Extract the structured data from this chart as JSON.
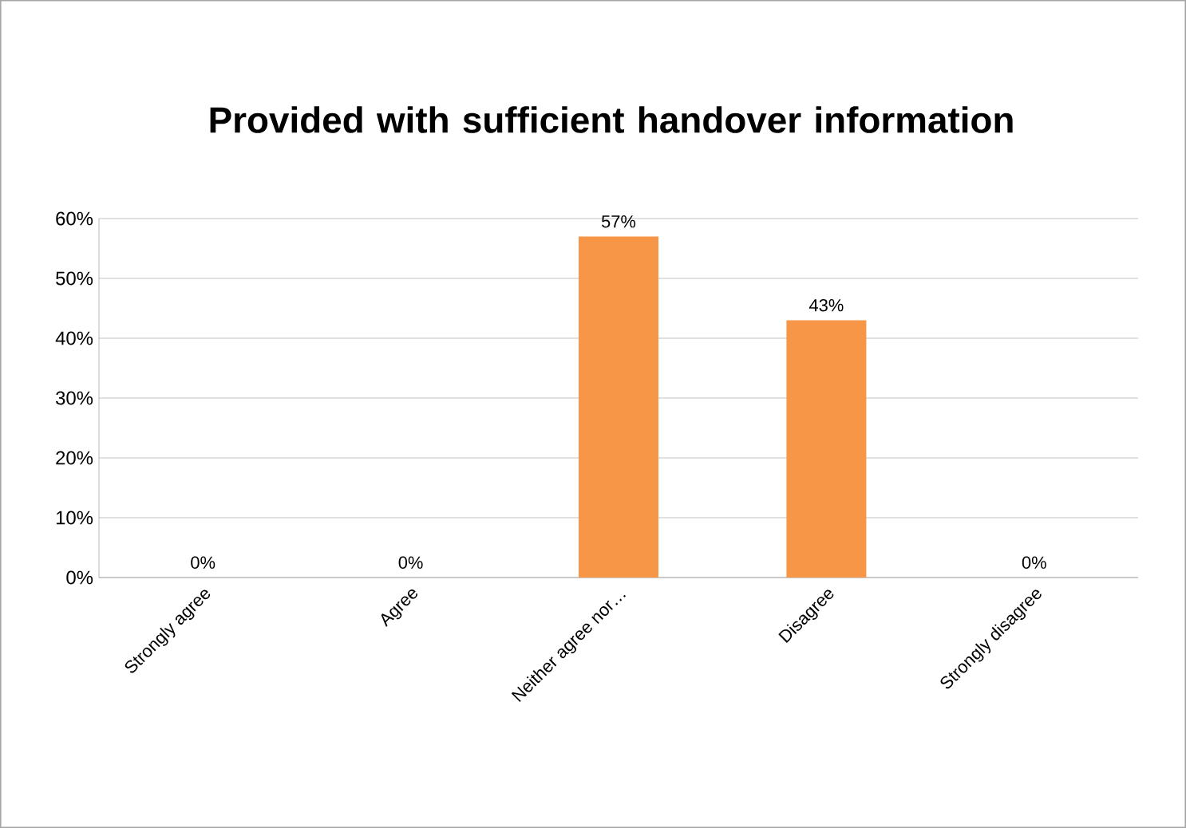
{
  "chart_data": {
    "type": "bar",
    "title": "Provided with sufficient handover information",
    "categories": [
      "Strongly agree",
      "Agree",
      "Neither agree nor…",
      "Disagree",
      "Strongly disagree"
    ],
    "values": [
      0,
      0,
      57,
      43,
      0
    ],
    "value_labels": [
      "0%",
      "0%",
      "57%",
      "43%",
      "0%"
    ],
    "color": "#f79646",
    "ylim": [
      0,
      60
    ],
    "yticks": [
      {
        "value": 0,
        "label": "0%"
      },
      {
        "value": 10,
        "label": "10%"
      },
      {
        "value": 20,
        "label": "20%"
      },
      {
        "value": 30,
        "label": "30%"
      },
      {
        "value": 40,
        "label": "40%"
      },
      {
        "value": 50,
        "label": "50%"
      },
      {
        "value": 60,
        "label": "60%"
      }
    ],
    "grid": "y"
  }
}
